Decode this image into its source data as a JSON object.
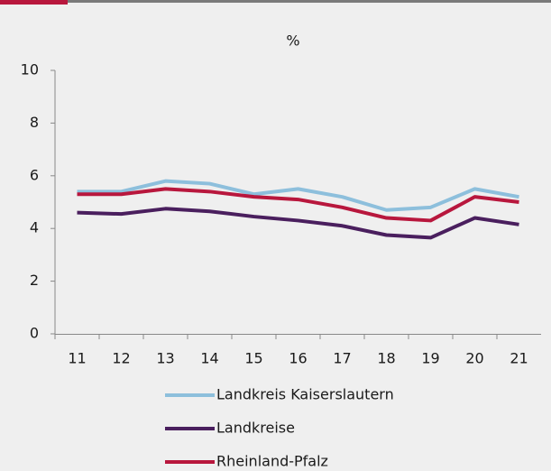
{
  "chart_data": {
    "type": "line",
    "title": "%",
    "categories": [
      "11",
      "12",
      "13",
      "14",
      "15",
      "16",
      "17",
      "18",
      "19",
      "20",
      "21"
    ],
    "series": [
      {
        "name": "Landkreis Kaiserslautern",
        "color": "#8dbfdc",
        "values": [
          5.4,
          5.4,
          5.8,
          5.7,
          5.3,
          5.5,
          5.2,
          4.7,
          4.8,
          5.5,
          5.2
        ]
      },
      {
        "name": "Landkreise",
        "color": "#4a1f5e",
        "values": [
          4.6,
          4.55,
          4.75,
          4.65,
          4.45,
          4.3,
          4.1,
          3.75,
          3.65,
          4.4,
          4.15
        ]
      },
      {
        "name": "Rheinland-Pfalz",
        "color": "#b8173d",
        "values": [
          5.3,
          5.3,
          5.5,
          5.4,
          5.2,
          5.1,
          4.8,
          4.4,
          4.3,
          5.2,
          5.0
        ]
      }
    ],
    "ylim": [
      0,
      10
    ],
    "yticks": [
      0,
      2,
      4,
      6,
      8,
      10
    ],
    "grid": false,
    "legend": "bottom"
  }
}
